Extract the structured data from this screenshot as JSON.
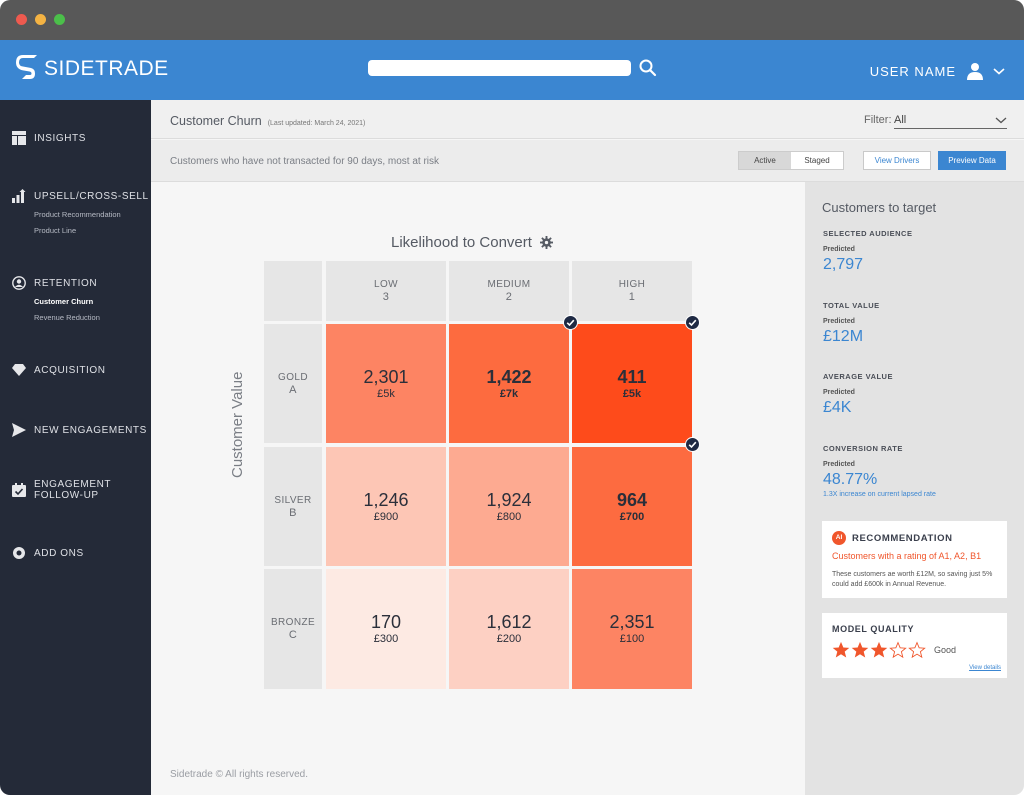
{
  "app": {
    "brand": "SIDETRADE",
    "accent": "#3b86d1",
    "brand_icon": "sidetrade-logo"
  },
  "user": {
    "name": "USER NAME",
    "icon": "user-icon"
  },
  "search": {
    "placeholder": ""
  },
  "sidebar": {
    "items": [
      {
        "label": "INSIGHTS",
        "icon": "layout-icon",
        "subs": []
      },
      {
        "label": "UPSELL/CROSS-SELL",
        "icon": "bar-growth-icon",
        "subs": [
          "Product Recommendation",
          "Product Line"
        ]
      },
      {
        "label": "RETENTION",
        "icon": "user-circle-icon",
        "subs": [
          "Customer Churn",
          "Revenue Reduction"
        ],
        "active_sub": "Customer Churn"
      },
      {
        "label": "ACQUISITION",
        "icon": "diamond-icon",
        "subs": []
      },
      {
        "label": "NEW ENGAGEMENTS",
        "icon": "send-icon",
        "subs": []
      },
      {
        "label": "ENGAGEMENT",
        "label2": "FOLLOW-UP",
        "icon": "calendar-check-icon",
        "subs": []
      },
      {
        "label": "ADD ONS",
        "icon": "gear-icon",
        "subs": []
      }
    ]
  },
  "page": {
    "title": "Customer Churn",
    "updated": "(Last updated: March 24, 2021)",
    "filter_label": "Filter:",
    "filter_value": "All",
    "subtitle": "Customers who have not transacted for 90 days, most at risk",
    "toggle": {
      "active": "Active",
      "staged": "Staged",
      "selected": "Active"
    },
    "view_drivers": "View Drivers",
    "preview_data": "Preview Data",
    "footer": "Sidetrade © All rights reserved."
  },
  "matrix": {
    "title": "Likelihood to Convert",
    "y_title": "Customer Value",
    "columns": [
      {
        "label": "LOW",
        "num": "3"
      },
      {
        "label": "MEDIUM",
        "num": "2"
      },
      {
        "label": "HIGH",
        "num": "1"
      }
    ],
    "rows": [
      {
        "label": "GOLD",
        "letter": "A",
        "cells": [
          {
            "count": "2,301",
            "value": "£5k",
            "color": "#fd8463",
            "bold": false
          },
          {
            "count": "1,422",
            "value": "£7k",
            "color": "#fd6b3f",
            "bold": true,
            "selected": true
          },
          {
            "count": "411",
            "value": "£5k",
            "color": "#fe4b1b",
            "bold": true,
            "selected": true
          }
        ]
      },
      {
        "label": "SILVER",
        "letter": "B",
        "cells": [
          {
            "count": "1,246",
            "value": "£900",
            "color": "#fdc6b5",
            "bold": false
          },
          {
            "count": "1,924",
            "value": "£800",
            "color": "#fdaa91",
            "bold": false
          },
          {
            "count": "964",
            "value": "£700",
            "color": "#fd6b40",
            "bold": true,
            "selected": true
          }
        ]
      },
      {
        "label": "BRONZE",
        "letter": "C",
        "cells": [
          {
            "count": "170",
            "value": "£300",
            "color": "#fdeae3",
            "bold": false
          },
          {
            "count": "1,612",
            "value": "£200",
            "color": "#fdd0c3",
            "bold": false
          },
          {
            "count": "2,351",
            "value": "£100",
            "color": "#fd8463",
            "bold": false
          }
        ]
      }
    ]
  },
  "panel": {
    "title": "Customers to target",
    "metrics": [
      {
        "label": "SELECTED AUDIENCE",
        "pred": "Predicted",
        "value": "2,797"
      },
      {
        "label": "TOTAL VALUE",
        "pred": "Predicted",
        "value": "£12M"
      },
      {
        "label": "AVERAGE VALUE",
        "pred": "Predicted",
        "value": "£4K"
      },
      {
        "label": "CONVERSION RATE",
        "pred": "Predicted",
        "value": "48.77%",
        "note": "1.3X increase on current lapsed rate"
      }
    ],
    "recommendation": {
      "badge": "AI",
      "title": "RECOMMENDATION",
      "headline": "Customers with a rating of A1, A2, B1",
      "body": "These customers ae worth £12M, so saving just 5% could add £600k in Annual Revenue."
    },
    "model_quality": {
      "title": "MODEL QUALITY",
      "rating": 3,
      "max": 5,
      "rating_label": "Good",
      "link": "View details",
      "star_color": "#f0562c"
    }
  }
}
